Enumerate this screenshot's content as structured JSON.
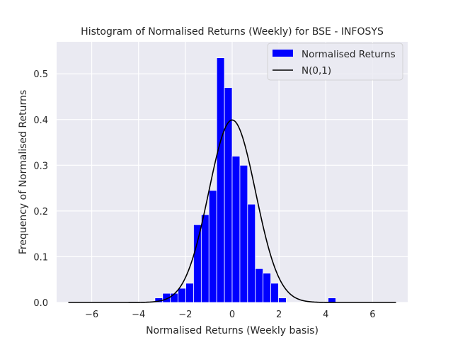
{
  "chart_data": {
    "type": "bar",
    "title": "Histogram of Normalised Returns (Weekly) for BSE - INFOSYS",
    "xlabel": "Normalised Returns (Weekly basis)",
    "ylabel": "Frequency of Normalised Returns",
    "xlim": [
      -7.5,
      7.5
    ],
    "ylim": [
      0,
      0.57
    ],
    "xticks": [
      -6,
      -4,
      -2,
      0,
      2,
      4,
      6
    ],
    "yticks": [
      0.0,
      0.1,
      0.2,
      0.3,
      0.4,
      0.5
    ],
    "ytick_labels": [
      "0.0",
      "0.1",
      "0.2",
      "0.3",
      "0.4",
      "0.5"
    ],
    "grid": true,
    "legend_position": "top-right",
    "histogram": {
      "name": "Normalised Returns",
      "color": "#0000ff",
      "bin_width": 0.33,
      "bins": [
        {
          "x0": -3.3,
          "x1": -2.97,
          "value": 0.01
        },
        {
          "x0": -2.97,
          "x1": -2.64,
          "value": 0.02
        },
        {
          "x0": -2.64,
          "x1": -2.31,
          "value": 0.02
        },
        {
          "x0": -2.31,
          "x1": -1.98,
          "value": 0.031
        },
        {
          "x0": -1.98,
          "x1": -1.65,
          "value": 0.042
        },
        {
          "x0": -1.65,
          "x1": -1.32,
          "value": 0.17
        },
        {
          "x0": -1.32,
          "x1": -0.99,
          "value": 0.192
        },
        {
          "x0": -0.99,
          "x1": -0.66,
          "value": 0.245
        },
        {
          "x0": -0.66,
          "x1": -0.33,
          "value": 0.535
        },
        {
          "x0": -0.33,
          "x1": 0.0,
          "value": 0.47
        },
        {
          "x0": 0.0,
          "x1": 0.33,
          "value": 0.32
        },
        {
          "x0": 0.33,
          "x1": 0.66,
          "value": 0.3
        },
        {
          "x0": 0.66,
          "x1": 0.99,
          "value": 0.215
        },
        {
          "x0": 0.99,
          "x1": 1.32,
          "value": 0.074
        },
        {
          "x0": 1.32,
          "x1": 1.65,
          "value": 0.064
        },
        {
          "x0": 1.65,
          "x1": 1.98,
          "value": 0.042
        },
        {
          "x0": 1.98,
          "x1": 2.31,
          "value": 0.01
        },
        {
          "x0": 4.1,
          "x1": 4.43,
          "value": 0.01
        }
      ]
    },
    "curve": {
      "name": "N(0,1)",
      "color": "#000000",
      "function": "normal_pdf",
      "mean": 0,
      "std": 1,
      "x_range": [
        -7,
        7
      ]
    },
    "colors": {
      "background": "#eaeaf2",
      "grid": "#ffffff",
      "text": "#262626"
    }
  }
}
